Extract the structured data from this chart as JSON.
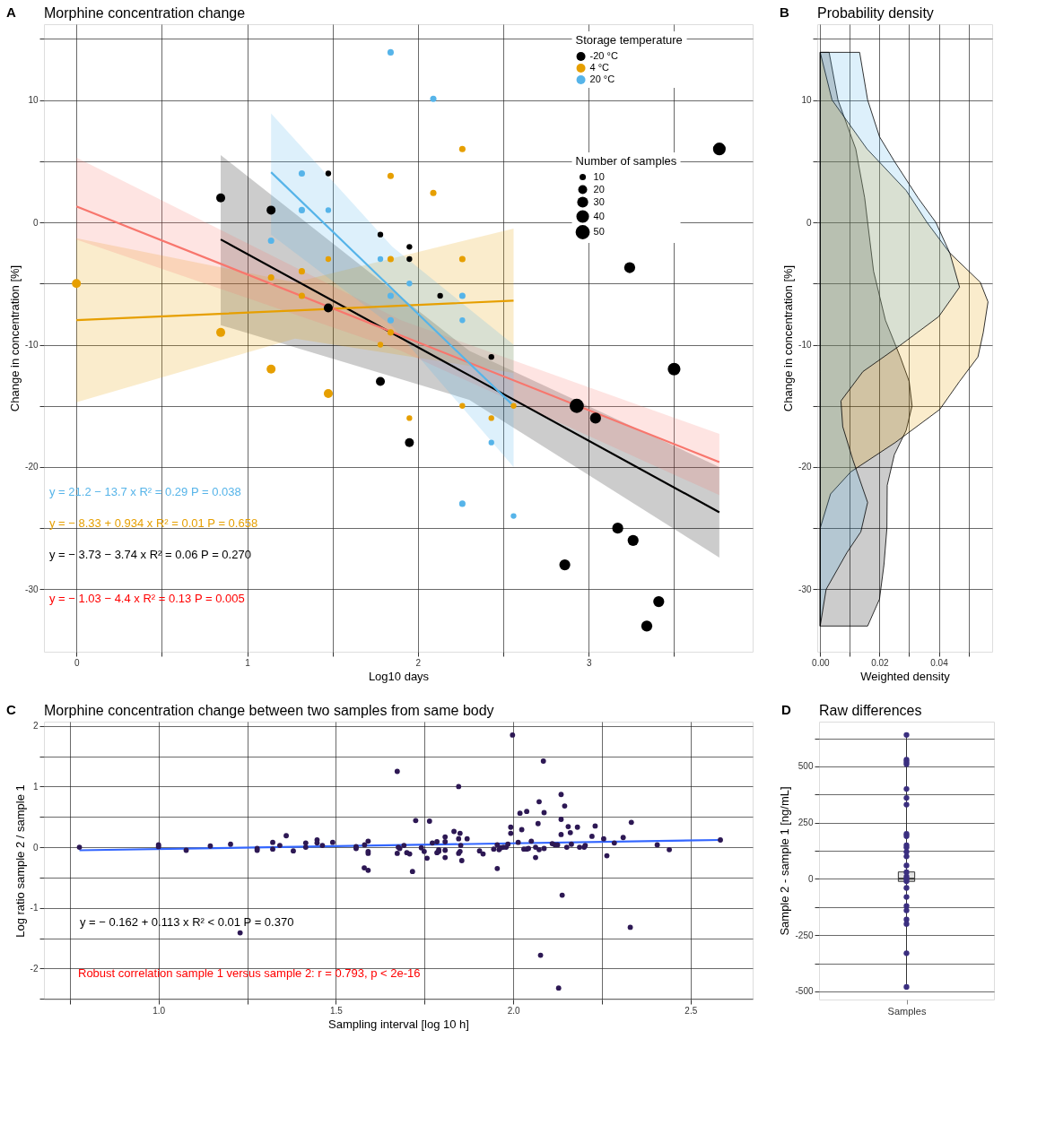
{
  "chart_data": [
    {
      "type": "scatter",
      "title": "Morphine concentration change",
      "xlabel": "Log10 days",
      "ylabel": "Change in concentration [%]",
      "legend_title": [
        "Storage temperature",
        "Number of samples"
      ],
      "legend": "top right",
      "size_legend": [
        10,
        20,
        30,
        40,
        50
      ],
      "grid": true,
      "marker": "circle",
      "xlim": [
        -0.19,
        3.96
      ],
      "xticks": [
        0,
        {
          "value": 0.5,
          "label": null
        },
        1,
        {
          "value": 1.5,
          "label": null
        },
        2,
        {
          "value": 2.5,
          "label": null
        },
        3,
        {
          "value": 3.5,
          "label": null
        }
      ],
      "ylim": [
        -35.1,
        16.2
      ],
      "yticks": [
        -30,
        {
          "value": -25,
          "label": null
        },
        -20,
        {
          "value": -15,
          "label": null
        },
        -10,
        {
          "value": -5,
          "label": null
        },
        0,
        {
          "value": 5,
          "label": null
        },
        10,
        {
          "value": 15,
          "label": null
        }
      ],
      "annotations": [
        "A",
        "y = 21.2 − 13.7 x   R² = 0.29   P = 0.038",
        "y = − 8.33 + 0.934 x   R² = 0.01   P = 0.658",
        "y = − 3.73 − 3.74 x   R² = 0.06   P = 0.270",
        "y = − 1.03 − 4.4 x   R² = 0.13   P = 0.005"
      ],
      "series": [
        {
          "name": "-20 °C",
          "type": "scatter",
          "color": "#000000",
          "x": [
            0.845,
            1.14,
            1.475,
            1.475,
            1.78,
            1.78,
            1.95,
            1.95,
            1.95,
            2.13,
            2.43,
            2.86,
            2.93,
            3.04,
            3.17,
            3.24,
            3.26,
            3.34,
            3.41,
            3.5,
            3.765
          ],
          "values": [
            2,
            1,
            4,
            -7,
            -1,
            -13,
            -2,
            -3,
            -18,
            -6,
            -11,
            -28,
            -15,
            -16,
            -25,
            -3.7,
            -26,
            -33,
            -31,
            -12,
            6
          ],
          "sizes": [
            20,
            20,
            8,
            20,
            8,
            20,
            8,
            8,
            20,
            8,
            8,
            30,
            50,
            30,
            30,
            30,
            30,
            30,
            30,
            40,
            40
          ]
        },
        {
          "name": "4 °C",
          "type": "scatter",
          "color": "#E69F00",
          "x": [
            0,
            0.845,
            1.14,
            1.14,
            1.32,
            1.32,
            1.475,
            1.475,
            1.78,
            1.84,
            1.84,
            1.84,
            1.95,
            2.09,
            2.26,
            2.26,
            2.26,
            2.43,
            2.56
          ],
          "values": [
            -5,
            -9,
            -12,
            -4.5,
            -4,
            -6,
            -3,
            -14,
            -10,
            3.8,
            -3,
            -9,
            -16,
            2.4,
            6,
            -3,
            -15,
            -16,
            -15
          ],
          "sizes": [
            20,
            20,
            20,
            10,
            10,
            10,
            8,
            20,
            8,
            10,
            10,
            10,
            8,
            10,
            10,
            10,
            8,
            8,
            8
          ]
        },
        {
          "name": "20 °C",
          "type": "scatter",
          "color": "#56B4E9",
          "x": [
            1.14,
            1.32,
            1.32,
            1.475,
            1.78,
            1.84,
            1.84,
            1.84,
            1.95,
            2.09,
            2.26,
            2.26,
            2.26,
            2.43,
            2.56
          ],
          "values": [
            -1.5,
            4,
            1,
            1,
            -3,
            13.9,
            -6,
            -8,
            -5,
            10.1,
            -6,
            -8,
            -23,
            -18,
            -24
          ],
          "sizes": [
            10,
            10,
            10,
            8,
            8,
            10,
            10,
            10,
            8,
            10,
            10,
            8,
            10,
            8,
            8
          ]
        },
        {
          "type": "line",
          "marker": "none",
          "color": "#000000",
          "x": [
            0.845,
            2.3,
            3.765
          ],
          "values": [
            -1.4,
            -12.5,
            -23.7
          ],
          "lower": [
            -8.4,
            -14.5,
            -27.4
          ],
          "upper": [
            5.5,
            -10.5,
            -20.0
          ]
        },
        {
          "type": "line",
          "marker": "none",
          "color": "#E69F00",
          "x": [
            0,
            1.28,
            2.56
          ],
          "values": [
            -8.0,
            -7.2,
            -6.4
          ],
          "lower": [
            -14.7,
            -9.5,
            -12.3
          ],
          "upper": [
            -1.3,
            -4.9,
            -0.5
          ]
        },
        {
          "type": "line",
          "marker": "none",
          "color": "#F8766D",
          "x": [
            0,
            1.9,
            3.765
          ],
          "values": [
            1.3,
            -9.25,
            -19.6
          ],
          "lower": [
            -1.4,
            -10.5,
            -22.3
          ],
          "upper": [
            5.3,
            -8.0,
            -17.3
          ]
        },
        {
          "type": "line",
          "marker": "none",
          "color": "#56B4E9",
          "x": [
            1.14,
            1.85,
            2.56
          ],
          "values": [
            4.1,
            -5.45,
            -15
          ],
          "lower": [
            -1.0,
            -8.5,
            -20
          ],
          "upper": [
            8.9,
            -2.0,
            -10
          ]
        }
      ]
    },
    {
      "type": "area",
      "orientation": "horizontal",
      "title": "Probability density",
      "xlabel": "Weighted density",
      "ylabel": "Change in concentration [%]",
      "grid": true,
      "xlim": [
        -0.001,
        0.058
      ],
      "xticks": [
        {
          "value": 0,
          "label": "0.00"
        },
        {
          "value": 0.01,
          "label": null
        },
        {
          "value": 0.02,
          "label": "0.02"
        },
        {
          "value": 0.03,
          "label": null
        },
        {
          "value": 0.04,
          "label": "0.04"
        },
        {
          "value": 0.05,
          "label": null
        }
      ],
      "ylim": [
        -35.1,
        16.2
      ],
      "yticks": [
        -30,
        {
          "value": -25,
          "label": null
        },
        -20,
        {
          "value": -15,
          "label": null
        },
        -10,
        {
          "value": -5,
          "label": null
        },
        0,
        {
          "value": 5,
          "label": null
        },
        10,
        {
          "value": 15,
          "label": null
        }
      ],
      "annotations": [
        "B"
      ],
      "series": [
        {
          "color": "#000000",
          "x": [
            13.9,
            10,
            6,
            2,
            0,
            -4,
            -8,
            -11,
            -13,
            -15,
            -17,
            -19,
            -21.5,
            -25,
            -28,
            -30.8,
            -33
          ],
          "values": [
            0.003,
            0.006,
            0.012,
            0.015,
            0.016,
            0.018,
            0.022,
            0.027,
            0.03,
            0.031,
            0.029,
            0.025,
            0.0226,
            0.0225,
            0.0215,
            0.02,
            0.016
          ]
        },
        {
          "color": "#E69F00",
          "x": [
            13.9,
            10,
            6,
            2.6,
            0,
            -2.5,
            -4.9,
            -6.5,
            -9,
            -11,
            -13,
            -15.3,
            -18,
            -20.4,
            -22.2,
            -25,
            -33
          ],
          "values": [
            0.0,
            0.004,
            0.0158,
            0.029,
            0.036,
            0.0437,
            0.054,
            0.0566,
            0.055,
            0.0532,
            0.047,
            0.0403,
            0.0253,
            0.0103,
            0.0035,
            0.0,
            0.0
          ]
        },
        {
          "color": "#56B4E9",
          "x": [
            13.9,
            10,
            7,
            5,
            2,
            0,
            -2.5,
            -5.3,
            -7.7,
            -10.1,
            -12.2,
            -14.6,
            -16.7,
            -19.4,
            -22.9,
            -25.3,
            -27,
            -30,
            -33
          ],
          "values": [
            0.0133,
            0.016,
            0.02,
            0.025,
            0.033,
            0.039,
            0.0437,
            0.047,
            0.04,
            0.0267,
            0.0144,
            0.007,
            0.0076,
            0.011,
            0.016,
            0.0137,
            0.009,
            0.002,
            0.0
          ]
        }
      ]
    },
    {
      "type": "scatter",
      "title": "Morphine concentration change between two samples from same body",
      "xlabel": "Sampling interval [log 10 h]",
      "ylabel": "Log ratio sample 2 / sample 1",
      "grid": true,
      "marker": "circle",
      "xlim": [
        0.677,
        2.675
      ],
      "xticks": [
        {
          "value": 0.75,
          "label": null
        },
        {
          "value": 1.0,
          "label": "1.0"
        },
        {
          "value": 1.25,
          "label": null
        },
        {
          "value": 1.5,
          "label": "1.5"
        },
        {
          "value": 1.75,
          "label": null
        },
        {
          "value": 2.0,
          "label": "2.0"
        },
        {
          "value": 2.25,
          "label": null
        },
        {
          "value": 2.5,
          "label": "2.5"
        }
      ],
      "ylim": [
        -2.51,
        2.07
      ],
      "yticks": [
        {
          "value": -2.5,
          "label": null
        },
        -2,
        {
          "value": -1.5,
          "label": null
        },
        -1,
        {
          "value": -0.5,
          "label": null
        },
        0,
        {
          "value": 0.5,
          "label": null
        },
        1,
        {
          "value": 1.5,
          "label": null
        },
        2
      ],
      "annotations": [
        "C",
        "y = − 0.162 + 0.113 x   R² < 0.01   P = 0.370",
        "Robust correlation sample 1 versus sample 2: r = 0.793, p < 2e-16"
      ],
      "series": [
        {
          "type": "scatter",
          "color": "#2d1854",
          "x": [
            0.777,
            1.0,
            1.0,
            1.078,
            1.146,
            1.203,
            1.23,
            1.278,
            1.278,
            1.322,
            1.322,
            1.342,
            1.36,
            1.38,
            1.415,
            1.415,
            1.447,
            1.447,
            1.462,
            1.491,
            1.557,
            1.557,
            1.581,
            1.591,
            1.591,
            1.591,
            1.58,
            1.591,
            1.673,
            1.673,
            1.676,
            1.68,
            1.692,
            1.7,
            1.708,
            1.716,
            1.725,
            1.741,
            1.749,
            1.757,
            1.764,
            1.772,
            1.785,
            1.785,
            1.79,
            1.79,
            1.808,
            1.808,
            1.808,
            1.808,
            1.833,
            1.846,
            1.846,
            1.846,
            1.85,
            1.85,
            1.852,
            1.855,
            1.87,
            1.905,
            1.915,
            1.945,
            1.955,
            1.955,
            1.96,
            1.965,
            1.972,
            1.98,
            1.985,
            1.993,
            1.993,
            1.998,
            2.014,
            2.019,
            2.024,
            2.03,
            2.038,
            2.038,
            2.043,
            2.051,
            2.063,
            2.063,
            2.07,
            2.073,
            2.073,
            2.077,
            2.085,
            2.087,
            2.087,
            2.11,
            2.118,
            2.125,
            2.128,
            2.135,
            2.135,
            2.135,
            2.138,
            2.145,
            2.151,
            2.155,
            2.161,
            2.164,
            2.181,
            2.187,
            2.2,
            2.203,
            2.222,
            2.231,
            2.255,
            2.264,
            2.285,
            2.31,
            2.33,
            2.333,
            2.406,
            2.44,
            2.584
          ],
          "values": [
            0.0,
            0.01,
            0.04,
            -0.05,
            0.02,
            0.05,
            -1.41,
            -0.02,
            -0.05,
            0.08,
            -0.03,
            0.03,
            0.19,
            -0.06,
            0.07,
            0.0,
            0.12,
            0.07,
            0.03,
            0.08,
            -0.02,
            0.01,
            0.04,
            0.1,
            -0.07,
            -0.1,
            -0.34,
            -0.38,
            1.25,
            -0.1,
            0.0,
            -0.02,
            0.03,
            -0.09,
            -0.11,
            -0.4,
            0.44,
            -0.01,
            -0.07,
            -0.18,
            0.43,
            0.07,
            0.09,
            -0.09,
            -0.07,
            -0.04,
            0.17,
            0.09,
            -0.05,
            -0.17,
            0.26,
            1.0,
            0.14,
            -0.1,
            -0.07,
            0.23,
            0.03,
            -0.22,
            0.14,
            -0.06,
            -0.11,
            -0.03,
            -0.35,
            0.04,
            -0.04,
            -0.01,
            0.0,
            0.0,
            0.05,
            0.33,
            0.23,
            1.85,
            0.08,
            0.56,
            0.29,
            -0.03,
            -0.03,
            0.59,
            -0.02,
            0.1,
            0.0,
            -0.17,
            0.39,
            0.75,
            -0.04,
            -1.78,
            1.42,
            0.57,
            -0.02,
            0.06,
            0.04,
            0.04,
            -2.32,
            0.87,
            0.46,
            0.21,
            -0.79,
            0.68,
            0.0,
            0.34,
            0.24,
            0.05,
            0.33,
            0.0,
            0.0,
            0.03,
            0.18,
            0.35,
            0.14,
            -0.14,
            0.07,
            0.16,
            -1.32,
            0.41,
            0.04,
            -0.04,
            0.12
          ]
        },
        {
          "type": "line",
          "marker": "none",
          "color": "#3366FF",
          "x": [
            0.777,
            2.584
          ],
          "values": [
            -0.05,
            0.12
          ]
        }
      ]
    },
    {
      "type": "box",
      "title": "Raw differences",
      "ylabel": "Sample 2 - sample 1 [ng/mL]",
      "grid": "y",
      "categories": [
        "Samples"
      ],
      "ylim": [
        -536,
        699
      ],
      "yticks": [
        -500,
        {
          "value": -375,
          "label": null
        },
        -250,
        {
          "value": -125,
          "label": null
        },
        0,
        {
          "value": 125,
          "label": null
        },
        250,
        {
          "value": 375,
          "label": null
        },
        500,
        {
          "value": 625,
          "label": null
        }
      ],
      "annotations": [
        "D"
      ],
      "boxes": [
        {
          "low": -480,
          "q1": -11,
          "median": 1,
          "q3": 31,
          "high": 640
        }
      ],
      "series": [
        {
          "type": "scatter",
          "color": "#3b2f80",
          "x": [
            "Samples",
            "Samples",
            "Samples",
            "Samples",
            "Samples",
            "Samples",
            "Samples",
            "Samples",
            "Samples",
            "Samples",
            "Samples",
            "Samples",
            "Samples",
            "Samples",
            "Samples",
            "Samples",
            "Samples",
            "Samples",
            "Samples",
            "Samples",
            "Samples",
            "Samples",
            "Samples",
            "Samples",
            "Samples",
            "Samples"
          ],
          "values": [
            640,
            530,
            520,
            510,
            400,
            360,
            330,
            200,
            190,
            150,
            140,
            120,
            100,
            60,
            30,
            10,
            0,
            -10,
            -40,
            -80,
            -120,
            -140,
            -180,
            -200,
            -330,
            -480
          ]
        }
      ]
    }
  ]
}
